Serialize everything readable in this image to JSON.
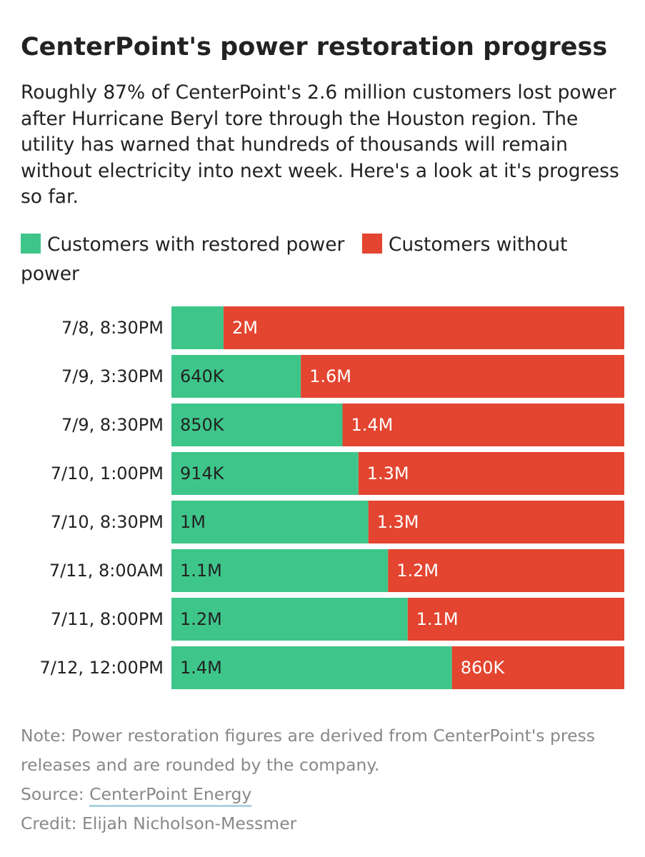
{
  "title": "CenterPoint's power restoration progress",
  "subtitle": "Roughly 87% of CenterPoint's 2.6 million customers lost power after Hurricane Beryl tore through the Houston region. The utility has warned that hundreds of thousands will remain without electricity into next week. Here's a look at it's progress so far.",
  "legend": [
    {
      "label": "Customers with restored power",
      "color": "#3ec68a"
    },
    {
      "label": "Customers without power",
      "color": "#e34530"
    }
  ],
  "chart_data": {
    "type": "bar",
    "orientation": "horizontal",
    "stacked": true,
    "categories": [
      "7/8, 8:30PM",
      "7/9, 3:30PM",
      "7/9, 8:30PM",
      "7/10, 1:00PM",
      "7/10, 8:30PM",
      "7/11, 8:00AM",
      "7/11, 8:00PM",
      "7/12, 12:00PM"
    ],
    "series": [
      {
        "name": "Customers with restored power",
        "color": "#3ec68a",
        "values": [
          260000,
          640000,
          850000,
          914000,
          1000000,
          1100000,
          1200000,
          1400000
        ],
        "labels": [
          "",
          "640K",
          "850K",
          "914K",
          "1M",
          "1.1M",
          "1.2M",
          "1.4M"
        ]
      },
      {
        "name": "Customers without power",
        "color": "#e34530",
        "values": [
          2000000,
          1600000,
          1400000,
          1300000,
          1300000,
          1200000,
          1100000,
          860000
        ],
        "labels": [
          "2M",
          "1.6M",
          "1.4M",
          "1.3M",
          "1.3M",
          "1.2M",
          "1.1M",
          "860K"
        ]
      }
    ],
    "normalized": true,
    "legend_position": "top",
    "grid": false
  },
  "footer": {
    "note": "Note: Power restoration figures are derived from CenterPoint's press releases and are rounded by the company.",
    "source_prefix": "Source: ",
    "source_link": "CenterPoint Energy",
    "credit": "Credit: Elijah Nicholson-Messmer"
  }
}
